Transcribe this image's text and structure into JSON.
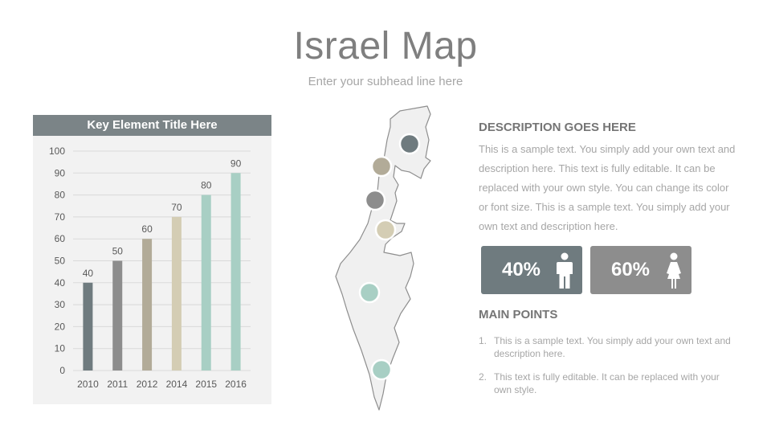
{
  "title": "Israel Map",
  "subtitle": "Enter your subhead line here",
  "chart_data": {
    "type": "bar",
    "title": "Key Element Title Here",
    "categories": [
      "2010",
      "2011",
      "2012",
      "2014",
      "2015",
      "2016"
    ],
    "values": [
      40,
      50,
      60,
      70,
      80,
      90
    ],
    "colors": [
      "#6f7b7f",
      "#8d8d8d",
      "#b2ab98",
      "#d4cdb4",
      "#a8cfc4",
      "#a8cfc4"
    ],
    "ylim": [
      0,
      100
    ],
    "yticks": [
      0,
      10,
      20,
      30,
      40,
      50,
      60,
      70,
      80,
      90,
      100
    ],
    "xlabel": "",
    "ylabel": "",
    "grid": true,
    "data_labels": true
  },
  "map": {
    "markers": [
      {
        "name": "marker-north",
        "color": "#6f7b7f"
      },
      {
        "name": "marker-2",
        "color": "#b2ab98"
      },
      {
        "name": "marker-3",
        "color": "#8d8d8d"
      },
      {
        "name": "marker-4",
        "color": "#d4cdb4"
      },
      {
        "name": "marker-5",
        "color": "#a8cfc4"
      },
      {
        "name": "marker-south",
        "color": "#a8cfc4"
      }
    ]
  },
  "description": {
    "title": "DESCRIPTION GOES HERE",
    "body": "This is a sample text. You simply add your own text and description here. This text is fully editable. It can be replaced with your own style. You can change its color or font size. This is a sample text. You simply add your own text and description here."
  },
  "stats": {
    "male": {
      "value": "40%",
      "icon": "male-person-icon"
    },
    "female": {
      "value": "60%",
      "icon": "female-person-icon"
    }
  },
  "main_points": {
    "title": "MAIN POINTS",
    "items": [
      {
        "num": "1.",
        "text": "This is a sample text. You simply add your own text and description here."
      },
      {
        "num": "2.",
        "text": "This text is fully editable. It can be replaced with your own style."
      }
    ]
  }
}
